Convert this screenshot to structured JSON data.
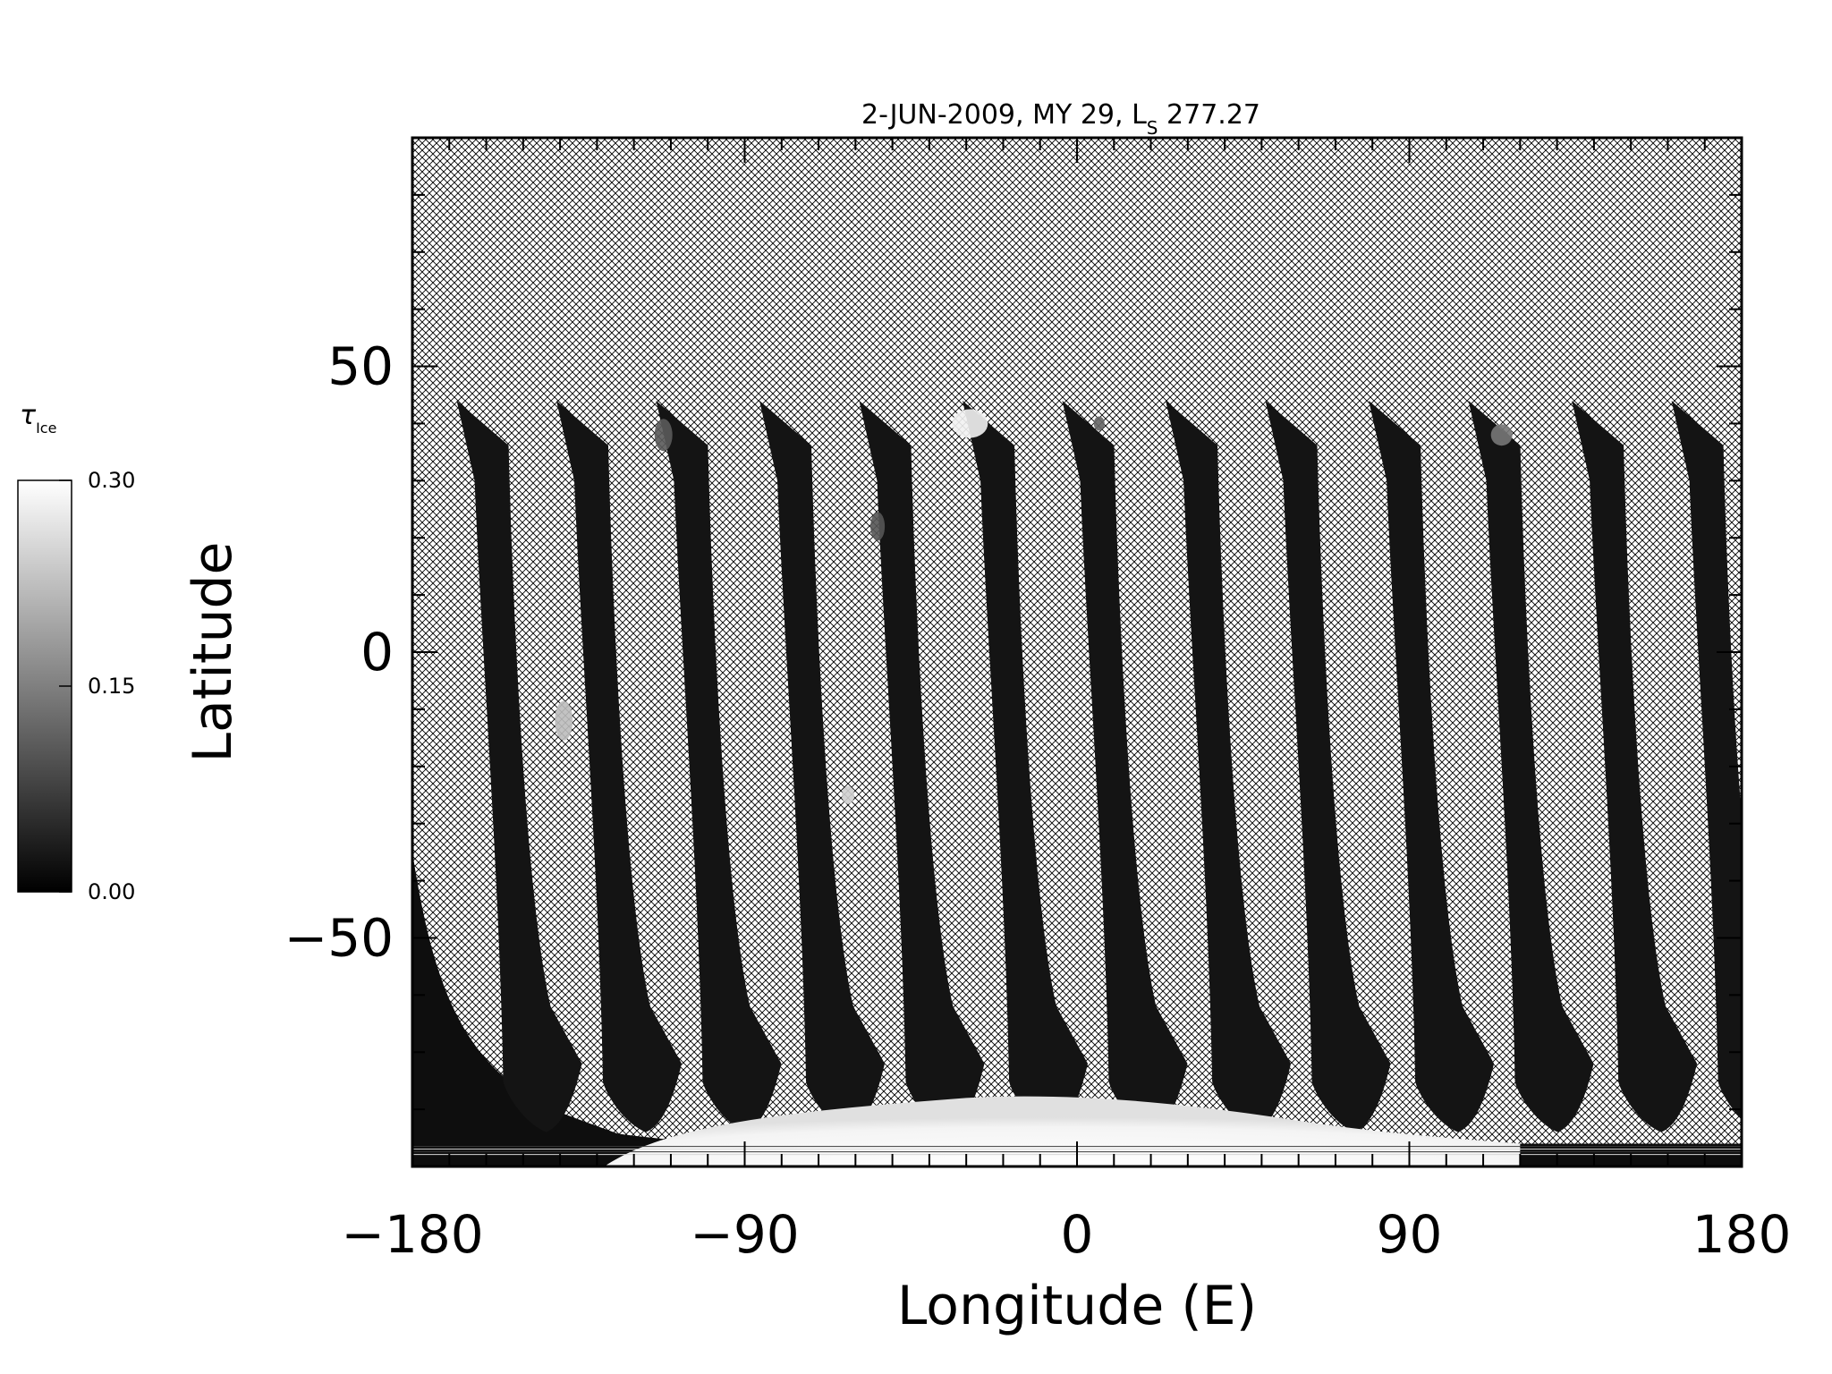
{
  "chart_data": {
    "type": "heatmap",
    "title": "2-JUN-2009, MY 29,  L",
    "title_subscript": "S",
    "title_value": " 277.27",
    "xlabel": "Longitude (E)",
    "ylabel": "Latitude",
    "xlim": [
      -180,
      180
    ],
    "ylim": [
      -90,
      90
    ],
    "x_ticks": [
      -180,
      -90,
      0,
      90,
      180
    ],
    "x_tick_labels": [
      "−180",
      "−90",
      "0",
      "90",
      "180"
    ],
    "y_ticks": [
      -50,
      0,
      50
    ],
    "y_tick_labels": [
      "−50",
      "0",
      "50"
    ],
    "grid": false,
    "no_data_pattern": "crosshatch",
    "colorbar": {
      "label": "τ",
      "label_subscript": "Ice",
      "range": [
        0.0,
        0.3
      ],
      "tick_labels": [
        "0.30",
        "0.15",
        "0.00"
      ],
      "tick_values": [
        0.3,
        0.15,
        0.0
      ],
      "colormap": "grayscale",
      "low_color": "#000000",
      "high_color": "#ffffff",
      "placement": "left"
    },
    "swath_start_longitudes": [
      -168,
      -141,
      -114,
      -86,
      -59,
      -31,
      -4,
      24,
      51,
      79,
      106,
      134,
      161
    ],
    "swath_north_limit_lat": 44,
    "swath_south_limit_lat": -75,
    "south_polar_cap_value": 0.3
  }
}
